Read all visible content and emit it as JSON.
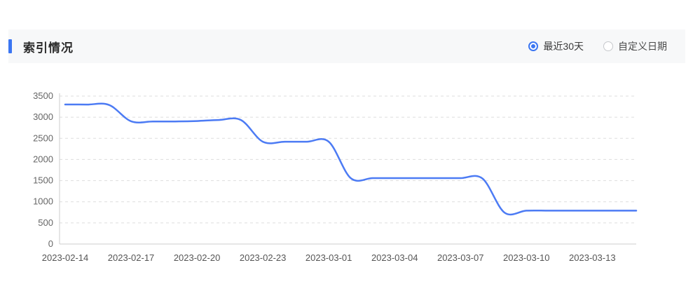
{
  "header": {
    "title": "索引情况",
    "accent_color": "#3b76f2",
    "bg": "#f7f8f9",
    "radios": [
      {
        "label": "最近30天",
        "selected": true
      },
      {
        "label": "自定义日期",
        "selected": false
      }
    ]
  },
  "chart_data": {
    "type": "line",
    "title": "索引情况",
    "x_tick_labels": [
      "2023-02-14",
      "2023-02-17",
      "2023-02-20",
      "2023-02-23",
      "2023-03-01",
      "2023-03-04",
      "2023-03-07",
      "2023-03-10",
      "2023-03-13"
    ],
    "tick_interval": 3,
    "values": [
      3300,
      3300,
      3290,
      2905,
      2900,
      2900,
      2910,
      2935,
      2935,
      2420,
      2420,
      2420,
      2420,
      1560,
      1560,
      1560,
      1560,
      1560,
      1560,
      1550,
      745,
      790,
      790,
      790,
      790,
      790,
      790
    ],
    "y_ticks": [
      0,
      500,
      1000,
      1500,
      2000,
      2500,
      3000,
      3500
    ],
    "ylim": [
      0,
      3500
    ],
    "xlabel": "",
    "ylabel": "",
    "grid": "dashed-horizontal",
    "legend": "none",
    "line_color": "#4c7bf4",
    "gridline_color": "#dddddd",
    "axis_line_color": "#cccccc",
    "smooth": true
  }
}
